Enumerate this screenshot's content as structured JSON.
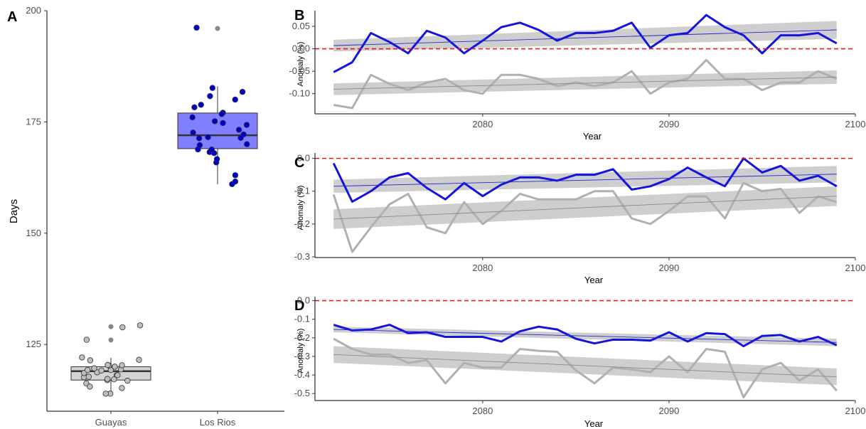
{
  "chart_data": [
    {
      "type": "box",
      "panel": "A",
      "ylabel": "Days",
      "xlabel": "",
      "ylim": [
        110,
        200
      ],
      "yticks": [
        125,
        150,
        175,
        200
      ],
      "categories": [
        "Guayas",
        "Los Rios"
      ],
      "boxes": [
        {
          "name": "Guayas",
          "fill": "#d3d3d3",
          "point_color": "#bebebe",
          "q1": 117,
          "median": 119,
          "q3": 120,
          "whisker_low": 114,
          "whisker_high": 122,
          "outliers": [
            129,
            126
          ],
          "points": [
            114,
            116,
            117,
            118,
            118,
            119,
            119,
            119,
            120,
            120,
            121,
            122,
            126,
            129,
            114,
            115,
            116,
            117,
            117,
            118,
            119,
            119,
            120,
            120,
            118,
            117,
            119,
            120,
            122,
            129
          ]
        },
        {
          "name": "Los Rios",
          "fill": "#7f7fff",
          "point_color": "#0000cd",
          "q1": 169,
          "median": 172,
          "q3": 177,
          "whisker_low": 161,
          "whisker_high": 183,
          "outliers": [
            196
          ],
          "points": [
            161,
            162,
            163,
            166,
            167,
            168,
            168,
            169,
            169,
            170,
            170,
            171,
            172,
            172,
            173,
            174,
            175,
            175,
            176,
            177,
            177,
            178,
            179,
            180,
            181,
            182,
            183,
            196,
            171,
            173
          ]
        }
      ]
    },
    {
      "type": "line",
      "panel": "B",
      "xlabel": "Year",
      "ylabel": "Anomaly (%)",
      "xlim": [
        2071,
        2100
      ],
      "ylim": [
        -0.14,
        0.08
      ],
      "xticks": [
        2080,
        2090,
        2100
      ],
      "yticks": [
        "0.05",
        "0.00",
        "-0.05",
        "-0.10"
      ],
      "ytick_values": [
        0.05,
        0.0,
        -0.05,
        -0.1
      ],
      "reference_line": 0,
      "x": [
        2072,
        2073,
        2074,
        2075,
        2076,
        2077,
        2078,
        2079,
        2080,
        2081,
        2082,
        2083,
        2084,
        2085,
        2086,
        2087,
        2088,
        2089,
        2090,
        2091,
        2092,
        2093,
        2094,
        2095,
        2096,
        2097,
        2098,
        2099
      ],
      "series": [
        {
          "color": "#1414dc",
          "values": [
            -0.052,
            -0.03,
            0.035,
            0.015,
            -0.01,
            0.04,
            0.025,
            -0.01,
            0.018,
            0.048,
            0.058,
            0.042,
            0.018,
            0.035,
            0.035,
            0.04,
            0.058,
            0.002,
            0.03,
            0.035,
            0.075,
            0.048,
            0.03,
            -0.01,
            0.03,
            0.03,
            0.035,
            0.012
          ],
          "trend": [
            0.007,
            0.042
          ],
          "band": [
            0.013,
            0.02
          ]
        },
        {
          "color": "#b0b0b0",
          "values": [
            -0.125,
            -0.132,
            -0.058,
            -0.078,
            -0.092,
            -0.075,
            -0.067,
            -0.092,
            -0.1,
            -0.058,
            -0.058,
            -0.067,
            -0.083,
            -0.075,
            -0.083,
            -0.075,
            -0.05,
            -0.1,
            -0.075,
            -0.067,
            -0.025,
            -0.067,
            -0.067,
            -0.092,
            -0.075,
            -0.075,
            -0.05,
            -0.067
          ],
          "trend": [
            -0.09,
            -0.063
          ],
          "band": [
            0.013,
            0.015
          ]
        }
      ]
    },
    {
      "type": "line",
      "panel": "C",
      "xlabel": "Year",
      "ylabel": "Anomaly (%)",
      "xlim": [
        2071,
        2100
      ],
      "ylim": [
        -0.3,
        0.01
      ],
      "xticks": [
        2080,
        2090,
        2100
      ],
      "yticks": [
        "0.0",
        "-0.1",
        "-0.2",
        "-0.3"
      ],
      "ytick_values": [
        0.0,
        -0.1,
        -0.2,
        -0.3
      ],
      "reference_line": 0,
      "x": [
        2072,
        2073,
        2074,
        2075,
        2076,
        2077,
        2078,
        2079,
        2080,
        2081,
        2082,
        2083,
        2084,
        2085,
        2086,
        2087,
        2088,
        2089,
        2090,
        2091,
        2092,
        2093,
        2094,
        2095,
        2096,
        2097,
        2098,
        2099
      ],
      "series": [
        {
          "color": "#1414dc",
          "values": [
            -0.015,
            -0.132,
            -0.1,
            -0.058,
            -0.045,
            -0.09,
            -0.125,
            -0.075,
            -0.115,
            -0.08,
            -0.058,
            -0.058,
            -0.068,
            -0.05,
            -0.05,
            -0.033,
            -0.095,
            -0.085,
            -0.063,
            -0.028,
            -0.058,
            -0.085,
            0.0,
            -0.043,
            -0.023,
            -0.068,
            -0.053,
            -0.085
          ],
          "trend": [
            -0.085,
            -0.048
          ],
          "band": [
            0.02,
            0.025
          ]
        },
        {
          "color": "#b0b0b0",
          "values": [
            -0.11,
            -0.285,
            -0.21,
            -0.14,
            -0.108,
            -0.21,
            -0.228,
            -0.133,
            -0.2,
            -0.16,
            -0.108,
            -0.125,
            -0.125,
            -0.125,
            -0.1,
            -0.1,
            -0.183,
            -0.2,
            -0.16,
            -0.116,
            -0.116,
            -0.183,
            -0.075,
            -0.1,
            -0.093,
            -0.166,
            -0.116,
            -0.133
          ],
          "trend": [
            -0.185,
            -0.115
          ],
          "band": [
            0.03,
            0.03
          ]
        }
      ]
    },
    {
      "type": "line",
      "panel": "D",
      "xlabel": "Year",
      "ylabel": "Anomaly (%)",
      "xlim": [
        2071,
        2100
      ],
      "ylim": [
        -0.53,
        0.01
      ],
      "xticks": [
        2080,
        2090,
        2100
      ],
      "yticks": [
        "0.0",
        "-0.1",
        "-0.2",
        "-0.3",
        "-0.4",
        "-0.5"
      ],
      "ytick_values": [
        0.0,
        -0.1,
        -0.2,
        -0.3,
        -0.4,
        -0.5
      ],
      "reference_line": 0,
      "x": [
        2072,
        2073,
        2074,
        2075,
        2076,
        2077,
        2078,
        2079,
        2080,
        2081,
        2082,
        2083,
        2084,
        2085,
        2086,
        2087,
        2088,
        2089,
        2090,
        2091,
        2092,
        2093,
        2094,
        2095,
        2096,
        2097,
        2098,
        2099
      ],
      "series": [
        {
          "color": "#1414dc",
          "values": [
            -0.13,
            -0.16,
            -0.155,
            -0.13,
            -0.175,
            -0.17,
            -0.195,
            -0.195,
            -0.195,
            -0.22,
            -0.165,
            -0.14,
            -0.155,
            -0.205,
            -0.23,
            -0.21,
            -0.21,
            -0.215,
            -0.17,
            -0.22,
            -0.175,
            -0.18,
            -0.245,
            -0.19,
            -0.185,
            -0.22,
            -0.195,
            -0.24
          ],
          "trend": [
            -0.155,
            -0.225
          ],
          "band": [
            0.015,
            0.02
          ]
        },
        {
          "color": "#b0b0b0",
          "values": [
            -0.205,
            -0.26,
            -0.29,
            -0.29,
            -0.335,
            -0.32,
            -0.445,
            -0.335,
            -0.36,
            -0.36,
            -0.26,
            -0.27,
            -0.275,
            -0.375,
            -0.445,
            -0.36,
            -0.37,
            -0.385,
            -0.3,
            -0.385,
            -0.26,
            -0.275,
            -0.52,
            -0.37,
            -0.335,
            -0.43,
            -0.37,
            -0.485
          ],
          "trend": [
            -0.29,
            -0.41
          ],
          "band": [
            0.045,
            0.045
          ]
        }
      ]
    }
  ]
}
